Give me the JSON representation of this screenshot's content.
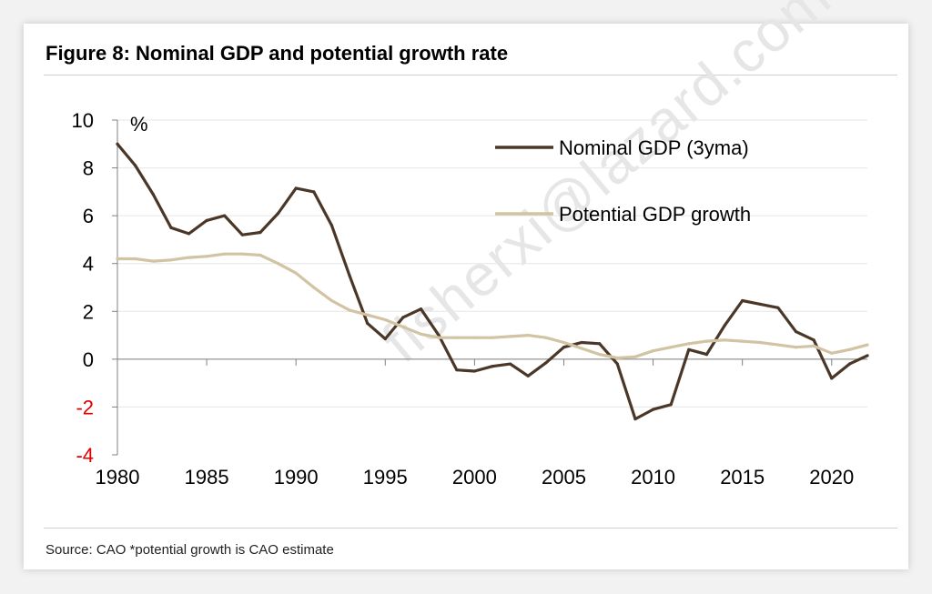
{
  "figure": {
    "title": "Figure 8: Nominal GDP and potential growth rate",
    "source": "Source: CAO *potential growth is CAO estimate",
    "watermark": "fisherxi@lazard.com"
  },
  "colors": {
    "nominal": "#4a3728",
    "potential": "#d2c3a3",
    "negative_tick": "#e00000",
    "grid": "#e6e6e6",
    "axis": "#808080"
  },
  "chart_data": {
    "type": "line",
    "title": "Figure 8: Nominal GDP and potential growth rate",
    "xlabel": "",
    "ylabel": "%",
    "xlim": [
      1980,
      2022
    ],
    "ylim": [
      -4,
      10
    ],
    "x_ticks": [
      "1980",
      "1985",
      "1990",
      "1995",
      "2000",
      "2005",
      "2010",
      "2015",
      "2020"
    ],
    "y_ticks": [
      "10",
      "8",
      "6",
      "4",
      "2",
      "0",
      "-2",
      "-4"
    ],
    "grid": true,
    "legend_position": "top-right",
    "series": [
      {
        "name": "Nominal GDP (3yma)",
        "x": [
          1980,
          1981,
          1982,
          1983,
          1984,
          1985,
          1986,
          1987,
          1988,
          1989,
          1990,
          1991,
          1992,
          1993,
          1994,
          1995,
          1996,
          1997,
          1998,
          1999,
          2000,
          2001,
          2002,
          2003,
          2004,
          2005,
          2006,
          2007,
          2008,
          2009,
          2010,
          2011,
          2012,
          2013,
          2014,
          2015,
          2016,
          2017,
          2018,
          2019,
          2020,
          2021,
          2022
        ],
        "values": [
          9.0,
          8.1,
          6.9,
          5.5,
          5.25,
          5.8,
          6.0,
          5.2,
          5.3,
          6.1,
          7.15,
          7.0,
          5.6,
          3.5,
          1.5,
          0.85,
          1.75,
          2.1,
          1.0,
          -0.45,
          -0.5,
          -0.3,
          -0.2,
          -0.7,
          -0.15,
          0.5,
          0.7,
          0.65,
          -0.2,
          -2.5,
          -2.1,
          -1.9,
          0.4,
          0.2,
          1.4,
          2.45,
          2.3,
          2.15,
          1.15,
          0.8,
          -0.8,
          -0.2,
          0.15
        ]
      },
      {
        "name": "Potential GDP growth",
        "x": [
          1980,
          1981,
          1982,
          1983,
          1984,
          1985,
          1986,
          1987,
          1988,
          1989,
          1990,
          1991,
          1992,
          1993,
          1994,
          1995,
          1996,
          1997,
          1998,
          1999,
          2000,
          2001,
          2002,
          2003,
          2004,
          2005,
          2006,
          2007,
          2008,
          2009,
          2010,
          2011,
          2012,
          2013,
          2014,
          2015,
          2016,
          2017,
          2018,
          2019,
          2020,
          2021,
          2022
        ],
        "values": [
          4.2,
          4.2,
          4.1,
          4.15,
          4.25,
          4.3,
          4.4,
          4.4,
          4.35,
          4.0,
          3.6,
          3.0,
          2.45,
          2.05,
          1.85,
          1.65,
          1.35,
          1.05,
          0.9,
          0.9,
          0.9,
          0.9,
          0.95,
          1.0,
          0.9,
          0.7,
          0.45,
          0.2,
          0.05,
          0.1,
          0.35,
          0.5,
          0.65,
          0.75,
          0.8,
          0.75,
          0.7,
          0.6,
          0.5,
          0.55,
          0.25,
          0.4,
          0.6
        ]
      }
    ]
  }
}
